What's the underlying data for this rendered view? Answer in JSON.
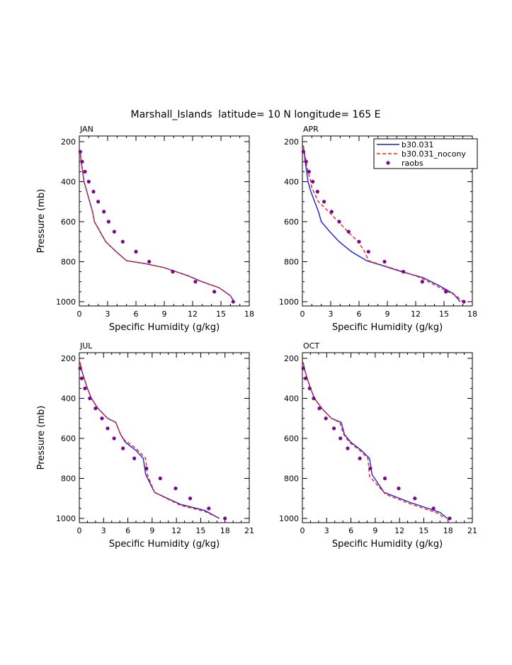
{
  "title": "Marshall_Islands  latitude= 10 N longitude= 165 E",
  "colors": {
    "model": "#1f1fd6",
    "nocony": "#e8251e",
    "raobs": "#7a0a8c",
    "axis": "#000000"
  },
  "legend": {
    "entries": [
      {
        "label": "b30.031",
        "style": "solid-line",
        "color": "#1f1fd6"
      },
      {
        "label": "b30.031_nocony",
        "style": "dashed-line",
        "color": "#e8251e"
      },
      {
        "label": "raobs",
        "style": "dot",
        "color": "#7a0a8c"
      }
    ],
    "placement": "top-right of APR panel"
  },
  "chart_data": [
    {
      "type": "line",
      "panel_label": "JAN",
      "xlabel": "Specific Humidity (g/kg)",
      "ylabel": "Pressure (mb)",
      "xlim": [
        0,
        18
      ],
      "xticks": [
        0,
        3,
        6,
        9,
        12,
        15,
        18
      ],
      "ylim": [
        1000,
        200
      ],
      "yticks": [
        200,
        400,
        600,
        800,
        1000
      ],
      "grid": false,
      "series": [
        {
          "name": "b30.031",
          "kind": "line",
          "points": [
            [
              0.1,
              250
            ],
            [
              0.2,
              300
            ],
            [
              0.35,
              350
            ],
            [
              0.5,
              400
            ],
            [
              0.8,
              450
            ],
            [
              1.1,
              500
            ],
            [
              1.4,
              550
            ],
            [
              1.6,
              600
            ],
            [
              2.2,
              650
            ],
            [
              2.8,
              700
            ],
            [
              3.9,
              750
            ],
            [
              5.0,
              795
            ],
            [
              7.0,
              810
            ],
            [
              9.0,
              830
            ],
            [
              11.5,
              870
            ],
            [
              13.0,
              900
            ],
            [
              14.8,
              930
            ],
            [
              16.0,
              970
            ],
            [
              16.4,
              1000
            ]
          ]
        },
        {
          "name": "b30.031_nocony",
          "kind": "dashed",
          "points": [
            [
              0.1,
              250
            ],
            [
              0.2,
              300
            ],
            [
              0.35,
              350
            ],
            [
              0.5,
              400
            ],
            [
              0.8,
              450
            ],
            [
              1.1,
              500
            ],
            [
              1.4,
              550
            ],
            [
              1.6,
              600
            ],
            [
              2.2,
              650
            ],
            [
              2.8,
              700
            ],
            [
              3.9,
              750
            ],
            [
              5.0,
              795
            ],
            [
              7.0,
              810
            ],
            [
              9.0,
              830
            ],
            [
              11.5,
              870
            ],
            [
              13.0,
              900
            ],
            [
              14.8,
              930
            ],
            [
              16.0,
              970
            ],
            [
              16.4,
              1000
            ]
          ]
        },
        {
          "name": "raobs",
          "kind": "dots",
          "points": [
            [
              0.1,
              250
            ],
            [
              0.3,
              300
            ],
            [
              0.6,
              350
            ],
            [
              1.0,
              400
            ],
            [
              1.5,
              450
            ],
            [
              2.0,
              500
            ],
            [
              2.6,
              550
            ],
            [
              3.1,
              600
            ],
            [
              3.7,
              650
            ],
            [
              4.6,
              700
            ],
            [
              6.0,
              750
            ],
            [
              7.4,
              800
            ],
            [
              9.9,
              850
            ],
            [
              12.3,
              900
            ],
            [
              14.3,
              950
            ],
            [
              16.3,
              1000
            ]
          ]
        }
      ]
    },
    {
      "type": "line",
      "panel_label": "APR",
      "xlabel": "Specific Humidity (g/kg)",
      "ylabel": "",
      "xlim": [
        0,
        18
      ],
      "xticks": [
        0,
        3,
        6,
        9,
        12,
        15,
        18
      ],
      "ylim": [
        1000,
        200
      ],
      "yticks": [
        200,
        400,
        600,
        800,
        1000
      ],
      "grid": false,
      "series": [
        {
          "name": "b30.031",
          "kind": "line",
          "points": [
            [
              0.1,
              220
            ],
            [
              0.2,
              260
            ],
            [
              0.3,
              300
            ],
            [
              0.45,
              350
            ],
            [
              0.6,
              400
            ],
            [
              0.9,
              450
            ],
            [
              1.3,
              500
            ],
            [
              1.7,
              550
            ],
            [
              2.0,
              600
            ],
            [
              2.9,
              650
            ],
            [
              3.9,
              700
            ],
            [
              5.2,
              750
            ],
            [
              6.8,
              795
            ],
            [
              8.5,
              820
            ],
            [
              10.5,
              850
            ],
            [
              12.8,
              880
            ],
            [
              14.5,
              920
            ],
            [
              16.0,
              960
            ],
            [
              16.7,
              1000
            ]
          ]
        },
        {
          "name": "b30.031_nocony",
          "kind": "dashed",
          "points": [
            [
              0.1,
              220
            ],
            [
              0.25,
              260
            ],
            [
              0.4,
              300
            ],
            [
              0.6,
              350
            ],
            [
              0.9,
              400
            ],
            [
              1.0,
              430
            ],
            [
              1.7,
              500
            ],
            [
              2.8,
              550
            ],
            [
              3.8,
              600
            ],
            [
              4.8,
              650
            ],
            [
              5.9,
              700
            ],
            [
              6.6,
              750
            ],
            [
              7.0,
              795
            ],
            [
              8.6,
              820
            ],
            [
              10.7,
              850
            ],
            [
              12.5,
              880
            ],
            [
              15.0,
              940
            ],
            [
              16.3,
              970
            ],
            [
              17.0,
              1000
            ]
          ]
        },
        {
          "name": "raobs",
          "kind": "dots",
          "points": [
            [
              0.1,
              250
            ],
            [
              0.4,
              300
            ],
            [
              0.7,
              350
            ],
            [
              1.1,
              400
            ],
            [
              1.6,
              450
            ],
            [
              2.3,
              500
            ],
            [
              3.1,
              550
            ],
            [
              3.9,
              600
            ],
            [
              4.9,
              650
            ],
            [
              6.0,
              700
            ],
            [
              7.0,
              750
            ],
            [
              8.7,
              800
            ],
            [
              10.7,
              850
            ],
            [
              12.7,
              900
            ],
            [
              15.2,
              950
            ],
            [
              17.1,
              1000
            ]
          ]
        }
      ]
    },
    {
      "type": "line",
      "panel_label": "JUL",
      "xlabel": "Specific Humidity (g/kg)",
      "ylabel": "Pressure (mb)",
      "xlim": [
        0,
        21
      ],
      "xticks": [
        0,
        3,
        6,
        9,
        12,
        15,
        18,
        21
      ],
      "ylim": [
        1000,
        200
      ],
      "yticks": [
        200,
        400,
        600,
        800,
        1000
      ],
      "grid": false,
      "series": [
        {
          "name": "b30.031",
          "kind": "line",
          "points": [
            [
              0.1,
              220
            ],
            [
              0.3,
              260
            ],
            [
              0.6,
              300
            ],
            [
              1.0,
              350
            ],
            [
              1.5,
              400
            ],
            [
              2.3,
              450
            ],
            [
              3.5,
              500
            ],
            [
              4.5,
              520
            ],
            [
              5.1,
              580
            ],
            [
              5.7,
              620
            ],
            [
              7.0,
              660
            ],
            [
              7.9,
              700
            ],
            [
              8.2,
              780
            ],
            [
              9.3,
              870
            ],
            [
              12.5,
              930
            ],
            [
              15.5,
              960
            ],
            [
              17.3,
              1000
            ]
          ]
        },
        {
          "name": "b30.031_nocony",
          "kind": "dashed",
          "points": [
            [
              0.1,
              220
            ],
            [
              0.3,
              260
            ],
            [
              0.6,
              300
            ],
            [
              1.0,
              350
            ],
            [
              1.5,
              400
            ],
            [
              2.3,
              450
            ],
            [
              3.5,
              500
            ],
            [
              4.5,
              520
            ],
            [
              5.1,
              580
            ],
            [
              5.5,
              605
            ],
            [
              7.0,
              650
            ],
            [
              8.2,
              700
            ],
            [
              8.4,
              780
            ],
            [
              9.3,
              870
            ],
            [
              12.5,
              935
            ],
            [
              15.5,
              965
            ],
            [
              17.3,
              1000
            ]
          ]
        },
        {
          "name": "raobs",
          "kind": "dots",
          "points": [
            [
              0.1,
              250
            ],
            [
              0.3,
              300
            ],
            [
              0.7,
              350
            ],
            [
              1.3,
              400
            ],
            [
              2.0,
              450
            ],
            [
              2.8,
              500
            ],
            [
              3.5,
              550
            ],
            [
              4.3,
              600
            ],
            [
              5.4,
              650
            ],
            [
              6.8,
              700
            ],
            [
              8.3,
              750
            ],
            [
              10.0,
              800
            ],
            [
              11.9,
              850
            ],
            [
              13.7,
              900
            ],
            [
              16.0,
              950
            ],
            [
              18.0,
              1000
            ]
          ]
        }
      ]
    },
    {
      "type": "line",
      "panel_label": "OCT",
      "xlabel": "Specific Humidity (g/kg)",
      "ylabel": "",
      "xlim": [
        0,
        21
      ],
      "xticks": [
        0,
        3,
        6,
        9,
        12,
        15,
        18,
        21
      ],
      "ylim": [
        1000,
        200
      ],
      "yticks": [
        200,
        400,
        600,
        800,
        1000
      ],
      "grid": false,
      "series": [
        {
          "name": "b30.031",
          "kind": "line",
          "points": [
            [
              0.1,
              220
            ],
            [
              0.3,
              260
            ],
            [
              0.6,
              300
            ],
            [
              1.0,
              350
            ],
            [
              1.5,
              400
            ],
            [
              2.4,
              450
            ],
            [
              3.6,
              500
            ],
            [
              4.8,
              520
            ],
            [
              5.2,
              580
            ],
            [
              6.0,
              620
            ],
            [
              7.3,
              660
            ],
            [
              8.3,
              700
            ],
            [
              8.6,
              780
            ],
            [
              10.1,
              870
            ],
            [
              13.3,
              920
            ],
            [
              17.0,
              970
            ],
            [
              17.9,
              1000
            ]
          ]
        },
        {
          "name": "b30.031_nocony",
          "kind": "dashed",
          "points": [
            [
              0.1,
              220
            ],
            [
              0.3,
              260
            ],
            [
              0.6,
              300
            ],
            [
              1.0,
              350
            ],
            [
              1.5,
              400
            ],
            [
              2.4,
              450
            ],
            [
              3.6,
              500
            ],
            [
              4.6,
              520
            ],
            [
              5.1,
              580
            ],
            [
              5.8,
              620
            ],
            [
              7.1,
              660
            ],
            [
              8.1,
              700
            ],
            [
              8.3,
              790
            ],
            [
              10.3,
              880
            ],
            [
              13.5,
              930
            ],
            [
              16.8,
              975
            ],
            [
              17.6,
              1000
            ]
          ]
        },
        {
          "name": "raobs",
          "kind": "dots",
          "points": [
            [
              0.1,
              250
            ],
            [
              0.4,
              300
            ],
            [
              0.9,
              350
            ],
            [
              1.4,
              400
            ],
            [
              2.1,
              450
            ],
            [
              2.9,
              500
            ],
            [
              3.9,
              550
            ],
            [
              4.7,
              600
            ],
            [
              5.6,
              650
            ],
            [
              7.1,
              700
            ],
            [
              8.4,
              750
            ],
            [
              10.2,
              800
            ],
            [
              11.9,
              850
            ],
            [
              13.9,
              900
            ],
            [
              16.2,
              950
            ],
            [
              18.2,
              1000
            ]
          ]
        }
      ]
    }
  ]
}
